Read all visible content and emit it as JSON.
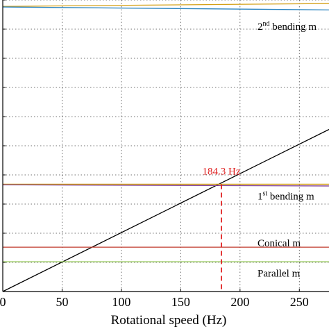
{
  "chart_data": {
    "type": "line",
    "xlabel": "Rotational speed (Hz)",
    "x_ticks": [
      0,
      50,
      100,
      150,
      200,
      250
    ],
    "xlim": [
      0,
      275
    ],
    "ylim": [
      0,
      10
    ],
    "y_gridlines": [
      1,
      2,
      3,
      4,
      5,
      6,
      7,
      8,
      9,
      10
    ],
    "grid": "dotted",
    "series": [
      {
        "color": "#000000",
        "style": "solid",
        "x": [
          0,
          275
        ],
        "y": [
          0,
          5.56
        ]
      },
      {
        "color": "#d4a017",
        "style": "solid",
        "x": [
          0,
          275
        ],
        "y": [
          9.78,
          9.88
        ]
      },
      {
        "color": "#2e86c1",
        "style": "solid",
        "x": [
          0,
          275
        ],
        "y": [
          9.76,
          9.66
        ]
      },
      {
        "color": "#d4a017",
        "style": "solid",
        "x": [
          0,
          275
        ],
        "y": [
          3.68,
          3.68
        ]
      },
      {
        "color": "#7d3c98",
        "style": "solid",
        "x": [
          0,
          275
        ],
        "y": [
          3.66,
          3.62
        ]
      },
      {
        "color": "#c0392b",
        "style": "solid",
        "x": [
          0,
          275
        ],
        "y": [
          1.52,
          1.52
        ]
      },
      {
        "color": "#8bc34a",
        "style": "solid",
        "x": [
          0,
          275
        ],
        "y": [
          1.02,
          1.02
        ]
      }
    ],
    "marker": {
      "x": 184.3,
      "y": 3.68,
      "label": "184.3 Hz",
      "color": "#e02020",
      "style": "dashed"
    },
    "mode_labels": [
      {
        "base": "2",
        "sup": "nd",
        "text": " bending m",
        "y": 9.1
      },
      {
        "base": "1",
        "sup": "st",
        "text": " bending m",
        "y": 3.27
      },
      {
        "base": "",
        "sup": "",
        "text": "Conical m",
        "y": 1.67
      },
      {
        "base": "",
        "sup": "",
        "text": "Parallel m",
        "y": 0.63
      }
    ]
  }
}
